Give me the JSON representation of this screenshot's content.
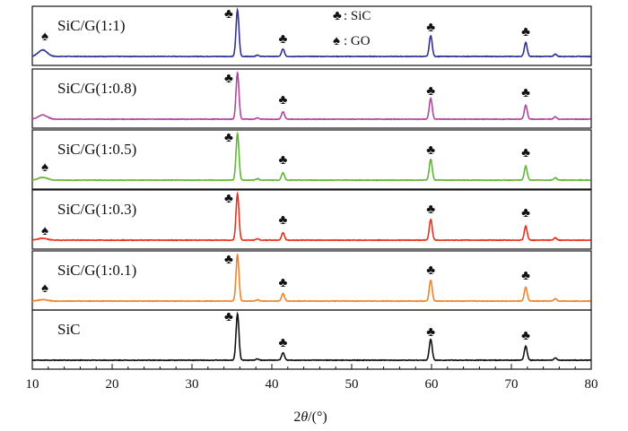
{
  "chart_data": {
    "type": "line",
    "xlabel_main": "2",
    "xlabel_var": "θ",
    "xlabel_unit": "/(°)",
    "xlim": [
      10,
      80
    ],
    "xticks": [
      10,
      20,
      30,
      40,
      50,
      60,
      70,
      80
    ],
    "legend": [
      {
        "symbol": "♣",
        "text": "SiC"
      },
      {
        "symbol": "♠",
        "text": "GO"
      }
    ],
    "legend_separator": ":",
    "sic_peaks": [
      {
        "x": 35.7,
        "intensity": 1.0
      },
      {
        "x": 41.4,
        "intensity": 0.16
      },
      {
        "x": 59.9,
        "intensity": 0.45
      },
      {
        "x": 71.8,
        "intensity": 0.3
      },
      {
        "x": 75.5,
        "intensity": 0.05
      },
      {
        "x": 38.2,
        "intensity": 0.03
      }
    ],
    "series": [
      {
        "name": "SiC/G(1:1)",
        "color": "#2e3192",
        "go_peak": 0.14,
        "has_go_marker": true
      },
      {
        "name": "SiC/G(1:0.8)",
        "color": "#b0479e",
        "go_peak": 0.09,
        "has_go_marker": false
      },
      {
        "name": "SiC/G(1:0.5)",
        "color": "#5fb832",
        "go_peak": 0.06,
        "has_go_marker": true
      },
      {
        "name": "SiC/G(1:0.3)",
        "color": "#e8301e",
        "go_peak": 0.04,
        "has_go_marker": true
      },
      {
        "name": "SiC/G(1:0.1)",
        "color": "#f0822a",
        "go_peak": 0.03,
        "has_go_marker": true
      },
      {
        "name": "SiC",
        "color": "#111111",
        "go_peak": 0.0,
        "has_go_marker": false
      }
    ]
  }
}
